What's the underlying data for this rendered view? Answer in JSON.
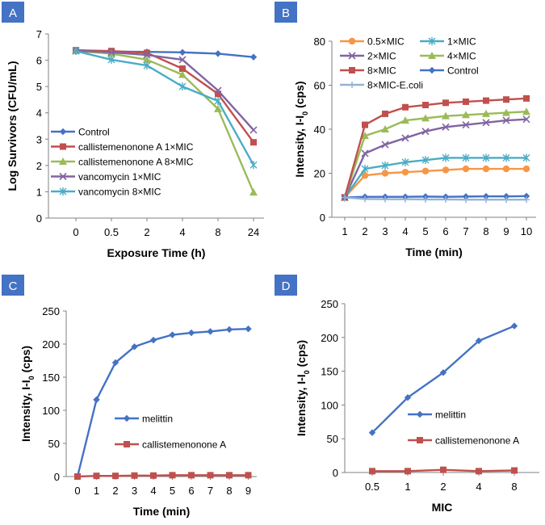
{
  "figure": {
    "colors": {
      "panel_label_bg": "#4472C4",
      "panel_label_text": "#ffffff",
      "axis": "#808080",
      "text": "#000000",
      "blue": "#4472C4",
      "red": "#C0504D",
      "green": "#9BBB59",
      "purple": "#8064A2",
      "teal": "#4BACC6",
      "orange": "#F79646",
      "lightblue": "#95B3D7"
    }
  },
  "chart_data": [
    {
      "panel": "A",
      "type": "line",
      "categories": [
        "0",
        "0.5",
        "2",
        "4",
        "8",
        "24"
      ],
      "xlabel": "Exposure Time (h)",
      "ylabel": "Log  Survivors (CFU/mL)",
      "ylim": [
        0,
        7
      ],
      "yticks": [
        "0",
        "1",
        "2",
        "3",
        "4",
        "5",
        "6",
        "7"
      ],
      "legend_position": "left",
      "series": [
        {
          "name": "Control",
          "color": "#4472C4",
          "marker": "diamond",
          "values": [
            6.38,
            6.33,
            6.32,
            6.3,
            6.25,
            6.12
          ]
        },
        {
          "name": "callistemenonone A 1×MIC",
          "color": "#C0504D",
          "marker": "square",
          "values": [
            6.38,
            6.35,
            6.28,
            5.68,
            4.72,
            2.88
          ]
        },
        {
          "name": "callistemenonone A 8×MIC",
          "color": "#9BBB59",
          "marker": "triangle",
          "values": [
            6.35,
            6.25,
            6.02,
            5.45,
            4.15,
            0.98
          ]
        },
        {
          "name": "vancomycin 1×MIC",
          "color": "#8064A2",
          "marker": "x",
          "values": [
            6.36,
            6.3,
            6.2,
            6.02,
            4.85,
            3.35
          ]
        },
        {
          "name": "vancomycin 8×MIC",
          "color": "#4BACC6",
          "marker": "star",
          "values": [
            6.35,
            6.02,
            5.8,
            5.0,
            4.45,
            2.02
          ]
        }
      ]
    },
    {
      "panel": "B",
      "type": "line",
      "categories": [
        "1",
        "2",
        "3",
        "4",
        "5",
        "6",
        "7",
        "8",
        "9",
        "10"
      ],
      "xlabel": "Time (min)",
      "ylabel": "Intensity, I-I₀ (cps)",
      "ylim": [
        0,
        80
      ],
      "yticks": [
        "0",
        "20",
        "40",
        "60",
        "80"
      ],
      "legend_position": "top",
      "series": [
        {
          "name": "0.5×MIC",
          "color": "#F79646",
          "marker": "circle",
          "values": [
            9,
            19,
            20,
            20.5,
            21,
            21.5,
            22,
            22,
            22,
            22
          ]
        },
        {
          "name": "1×MIC",
          "color": "#4BACC6",
          "marker": "star",
          "values": [
            9,
            22,
            23.5,
            25,
            26,
            27,
            27,
            27,
            27,
            27
          ]
        },
        {
          "name": "2×MIC",
          "color": "#8064A2",
          "marker": "x",
          "values": [
            9,
            29,
            33,
            36,
            39,
            41,
            42,
            43,
            44,
            44.5
          ]
        },
        {
          "name": "4×MIC",
          "color": "#9BBB59",
          "marker": "triangle",
          "values": [
            9,
            37,
            40,
            44,
            45,
            46,
            46.5,
            47,
            47.5,
            48
          ]
        },
        {
          "name": "8×MIC",
          "color": "#C0504D",
          "marker": "square",
          "values": [
            9,
            42,
            47,
            50,
            51,
            52,
            52.5,
            53,
            53.5,
            54
          ]
        },
        {
          "name": "Control",
          "color": "#4472C4",
          "marker": "diamond",
          "values": [
            9,
            9.3,
            9.3,
            9.3,
            9.4,
            9.3,
            9.4,
            9.5,
            9.5,
            9.6
          ]
        },
        {
          "name": "8×MIC-E.coli",
          "color": "#95B3D7",
          "marker": "plus",
          "values": [
            9,
            8.3,
            8.2,
            8.2,
            8.1,
            8.1,
            8.0,
            8.0,
            8.0,
            8.0
          ]
        }
      ]
    },
    {
      "panel": "C",
      "type": "line",
      "categories": [
        "0",
        "1",
        "2",
        "3",
        "4",
        "5",
        "6",
        "7",
        "8",
        "9"
      ],
      "xlabel": "Time (min)",
      "ylabel": "Intensity, I-I₀ (cps)",
      "ylim": [
        0,
        250
      ],
      "yticks": [
        "0",
        "50",
        "100",
        "150",
        "200",
        "250"
      ],
      "legend_position": "center-right",
      "series": [
        {
          "name": "melittin",
          "color": "#4472C4",
          "marker": "diamond",
          "values": [
            0,
            116,
            172,
            196,
            206,
            214,
            217,
            219,
            222,
            223
          ]
        },
        {
          "name": "callistemenonone A",
          "color": "#C0504D",
          "marker": "square",
          "values": [
            0,
            1,
            1,
            1.5,
            1.5,
            2,
            2,
            2,
            2,
            2
          ]
        }
      ]
    },
    {
      "panel": "D",
      "type": "line",
      "categories": [
        "0.5",
        "1",
        "2",
        "4",
        "8"
      ],
      "xlabel": "MIC",
      "ylabel": "Intensity, I-I₀ (cps)",
      "ylim": [
        0,
        250
      ],
      "yticks": [
        "0",
        "50",
        "100",
        "150",
        "200",
        "250"
      ],
      "legend_position": "center-right",
      "series": [
        {
          "name": "melittin",
          "color": "#4472C4",
          "marker": "diamond",
          "values": [
            59,
            111,
            148,
            195,
            217
          ]
        },
        {
          "name": "callistemenonone A",
          "color": "#C0504D",
          "marker": "square",
          "values": [
            2,
            2,
            4,
            2,
            3
          ]
        }
      ]
    }
  ]
}
